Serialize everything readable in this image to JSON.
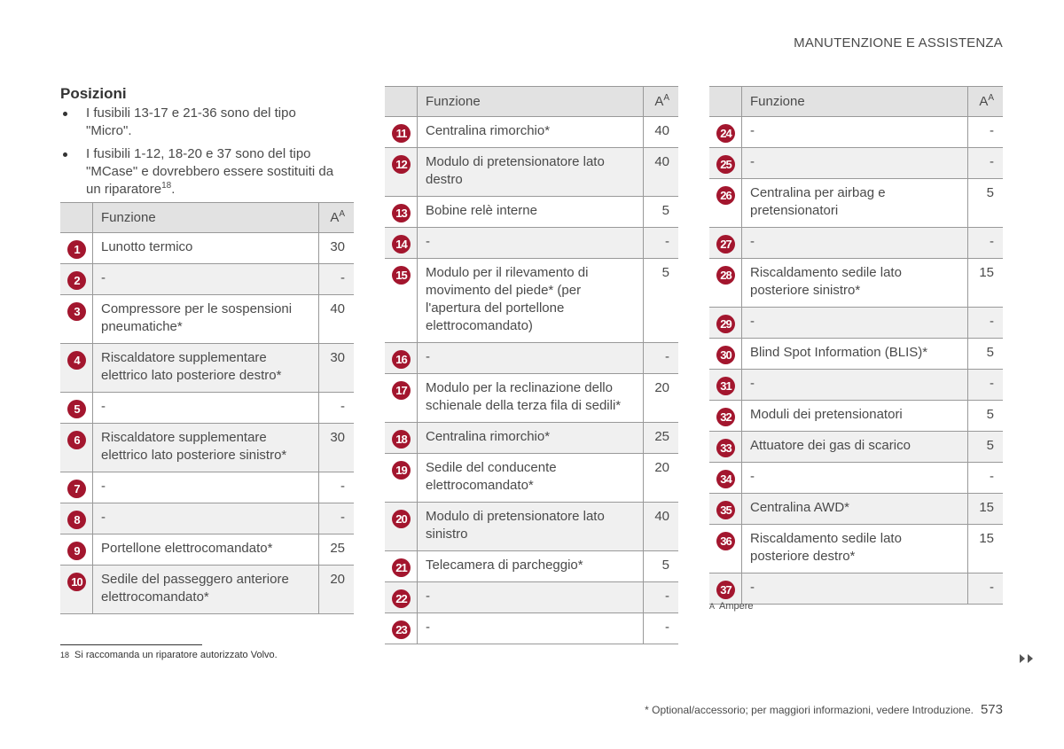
{
  "header": {
    "title": "MANUTENZIONE E ASSISTENZA"
  },
  "section": {
    "title": "Posizioni",
    "bullets": [
      {
        "text": "I fusibili 13-17 e 21-36 sono del tipo \"Micro\"."
      },
      {
        "text": "I fusibili 1-12, 18-20  e 37 sono del tipo \"MCase\" e dovrebbero essere sostituiti da un riparatore",
        "sup": "18",
        "end": "."
      }
    ]
  },
  "table_header": {
    "function": "Funzione",
    "unit": "A",
    "unit_note": "A"
  },
  "tables": [
    {
      "rows": [
        [
          1,
          "Lunotto termico",
          30
        ],
        [
          2,
          "-",
          "-"
        ],
        [
          3,
          "Compressore per le sospensioni pneumatiche*",
          40
        ],
        [
          4,
          "Riscaldatore supplementare elettrico lato posteriore destro*",
          30
        ],
        [
          5,
          "-",
          "-"
        ],
        [
          6,
          "Riscaldatore supplementare elettrico lato posteriore sinistro*",
          30
        ],
        [
          7,
          "-",
          "-"
        ],
        [
          8,
          "-",
          "-"
        ],
        [
          9,
          "Portellone elettrocomandato*",
          25
        ],
        [
          10,
          "Sedile del passeggero anteriore elettrocomandato*",
          20
        ]
      ]
    },
    {
      "rows": [
        [
          11,
          "Centralina rimorchio*",
          40
        ],
        [
          12,
          "Modulo di pretensionatore lato destro",
          40
        ],
        [
          13,
          "Bobine relè interne",
          5
        ],
        [
          14,
          "-",
          "-"
        ],
        [
          15,
          "Modulo per il rilevamento di movimento del piede* (per l'apertura del portellone elettrocomandato)",
          5
        ],
        [
          16,
          "-",
          "-"
        ],
        [
          17,
          "Modulo per la reclinazione dello schienale della terza fila di sedili*",
          20
        ],
        [
          18,
          "Centralina rimorchio*",
          25
        ],
        [
          19,
          "Sedile del conducente elettrocomandato*",
          20
        ],
        [
          20,
          "Modulo di pretensionatore lato sinistro",
          40
        ],
        [
          21,
          "Telecamera di parcheggio*",
          5
        ],
        [
          22,
          "-",
          "-"
        ],
        [
          23,
          "-",
          "-"
        ]
      ]
    },
    {
      "rows": [
        [
          24,
          "-",
          "-"
        ],
        [
          25,
          "-",
          "-"
        ],
        [
          26,
          "Centralina per airbag e pretensionatori",
          5
        ],
        [
          27,
          "-",
          "-"
        ],
        [
          28,
          "Riscaldamento sedile lato posteriore sinistro*",
          15
        ],
        [
          29,
          "-",
          "-"
        ],
        [
          30,
          "Blind Spot Information (BLIS)*",
          5
        ],
        [
          31,
          "-",
          "-"
        ],
        [
          32,
          "Moduli dei pretensionatori",
          5
        ],
        [
          33,
          "Attuatore dei gas di scarico",
          5
        ],
        [
          34,
          "-",
          "-"
        ],
        [
          35,
          "Centralina AWD*",
          15
        ],
        [
          36,
          "Riscaldamento sedile lato posteriore destro*",
          15
        ],
        [
          37,
          "-",
          "-"
        ]
      ]
    }
  ],
  "table_note": {
    "marker": "A",
    "text": "Ampere"
  },
  "footnote": {
    "number": "18",
    "text": "Si raccomanda un riparatore autorizzato Volvo."
  },
  "footer": {
    "note": "* Optional/accessorio; per maggiori informazioni, vedere Introduzione.",
    "page": "573"
  }
}
